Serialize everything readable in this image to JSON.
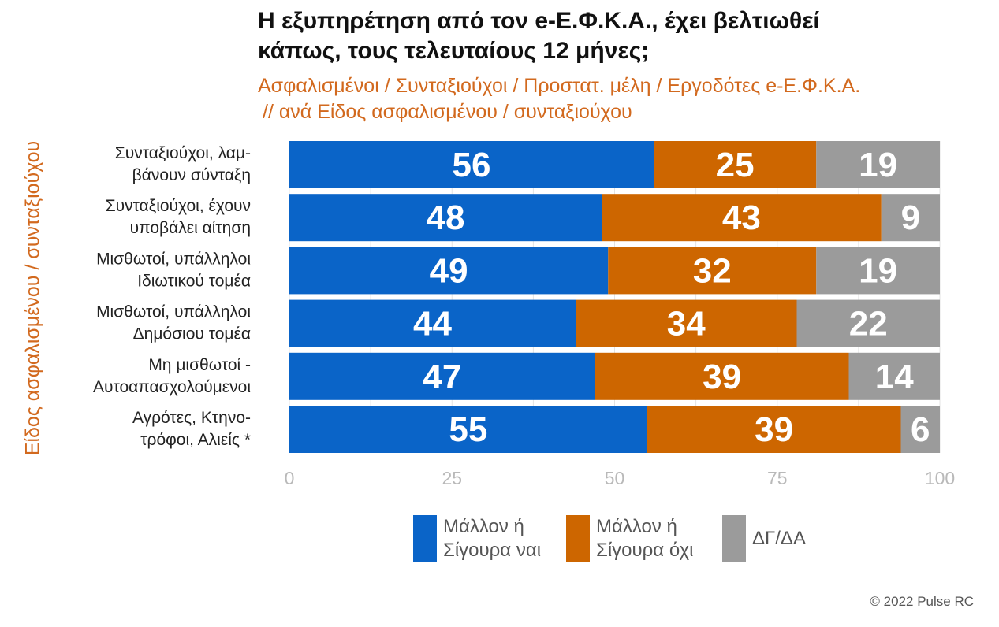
{
  "title_line1": "Η εξυπηρέτηση από τον e-Ε.Φ.Κ.Α., έχει βελτιωθεί",
  "title_line2": "κάπως, τους τελευταίους 12 μήνες;",
  "subtitle_line1": "Ασφαλισμένοι / Συνταξιούχοι / Προστατ. μέλη / Εργοδότες e-Ε.Φ.Κ.Α.",
  "subtitle_line2": "// ανά Είδος ασφαλισμένου / συνταξιούχου",
  "y_axis_title": "Είδος ασφαλισμένου / συνταξιούχου",
  "copyright": "© 2022 Pulse RC",
  "colors": {
    "yes": "#0a64c8",
    "no": "#cd6600",
    "dk": "#9b9b9b",
    "accent_text": "#d2691e"
  },
  "legend": [
    {
      "key": "yes",
      "line1": "Μάλλον ή",
      "line2": "Σίγουρα ναι"
    },
    {
      "key": "no",
      "line1": "Μάλλον ή",
      "line2": "Σίγουρα όχι"
    },
    {
      "key": "dk",
      "line1": "ΔΓ/ΔΑ",
      "line2": ""
    }
  ],
  "chart_data": {
    "type": "bar",
    "orientation": "horizontal",
    "stacked": true,
    "title": "Η εξυπηρέτηση από τον e-Ε.Φ.Κ.Α., έχει βελτιωθεί κάπως, τους τελευταίους 12 μήνες;",
    "subtitle": "Ασφαλισμένοι / Συνταξιούχοι / Προστατ. μέλη / Εργοδότες e-Ε.Φ.Κ.Α. // ανά Είδος ασφαλισμένου / συνταξιούχου",
    "ylabel": "Είδος ασφαλισμένου / συνταξιούχου",
    "xlim": [
      0,
      100
    ],
    "xticks": [
      0,
      25,
      50,
      75,
      100
    ],
    "grid": true,
    "legend_position": "bottom",
    "categories": [
      [
        "Συνταξιούχοι, λαμ-",
        "βάνουν σύνταξη"
      ],
      [
        "Συνταξιούχοι, έχουν",
        "υποβάλει αίτηση"
      ],
      [
        "Μισθωτοί, υπάλληλοι",
        "Ιδιωτικού τομέα"
      ],
      [
        "Μισθωτοί, υπάλληλοι",
        "Δημόσιου τομέα"
      ],
      [
        "Μη μισθωτοί -",
        "Αυτοαπασχολούμενοι"
      ],
      [
        "Αγρότες, Κτηνο-",
        "τρόφοι, Αλιείς *"
      ]
    ],
    "series": [
      {
        "name": "Μάλλον ή Σίγουρα ναι",
        "key": "yes",
        "values": [
          56,
          48,
          49,
          44,
          47,
          55
        ]
      },
      {
        "name": "Μάλλον ή Σίγουρα όχι",
        "key": "no",
        "values": [
          25,
          43,
          32,
          34,
          39,
          39
        ]
      },
      {
        "name": "ΔΓ/ΔΑ",
        "key": "dk",
        "values": [
          19,
          9,
          19,
          22,
          14,
          6
        ]
      }
    ]
  }
}
